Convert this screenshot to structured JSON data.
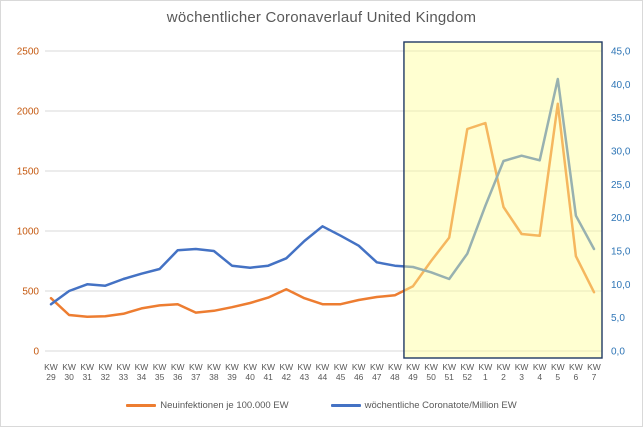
{
  "title": "wöchentlicher Coronaverlauf United Kingdom",
  "chart_data": {
    "type": "line",
    "category_prefix": "KW",
    "categories": [
      "29",
      "30",
      "31",
      "32",
      "33",
      "34",
      "35",
      "36",
      "37",
      "38",
      "39",
      "40",
      "41",
      "42",
      "43",
      "44",
      "45",
      "46",
      "47",
      "48",
      "49",
      "50",
      "51",
      "52",
      "1",
      "2",
      "3",
      "4",
      "5",
      "6",
      "7"
    ],
    "series": [
      {
        "name": "Neuinfektionen je 100.000 EW",
        "axis": "left",
        "color": "#ED7D31",
        "values": [
          440,
          300,
          285,
          290,
          310,
          355,
          380,
          390,
          320,
          335,
          365,
          400,
          445,
          515,
          440,
          390,
          390,
          425,
          450,
          465,
          540,
          750,
          945,
          1850,
          1900,
          1200,
          975,
          960,
          2060,
          790,
          490
        ]
      },
      {
        "name": "wöchentliche Coronatote/Million EW",
        "axis": "right",
        "color": "#4472C4",
        "values": [
          7,
          9,
          10,
          9.8,
          10.8,
          11.6,
          12.3,
          15.1,
          15.3,
          15,
          12.8,
          12.5,
          12.8,
          13.9,
          16.5,
          18.7,
          17.3,
          15.8,
          13.3,
          12.8,
          12.6,
          11.8,
          10.8,
          14.6,
          21.8,
          28.5,
          29.3,
          28.6,
          40.8,
          20.3,
          15.3
        ]
      }
    ],
    "left_axis": {
      "min": 0,
      "max": 2500,
      "step": 500,
      "ticks": [
        "0",
        "500",
        "1000",
        "1500",
        "2000",
        "2500"
      ],
      "color": "#C55A11"
    },
    "right_axis": {
      "min": 0,
      "max": 45,
      "step": 5,
      "ticks": [
        "0,0",
        "5,0",
        "10,0",
        "15,0",
        "20,0",
        "25,0",
        "30,0",
        "35,0",
        "40,0",
        "45,0"
      ],
      "color": "#2E75B6"
    },
    "highlight_region": {
      "from_label": "KW 49",
      "to_label": "KW 7",
      "fill": "#FFFF99",
      "opacity": 0.45,
      "border": "#1F3864"
    },
    "grid": true,
    "gridline_color": "#D9D9D9",
    "axis_label_color": "#595959",
    "legend_position": "bottom"
  }
}
